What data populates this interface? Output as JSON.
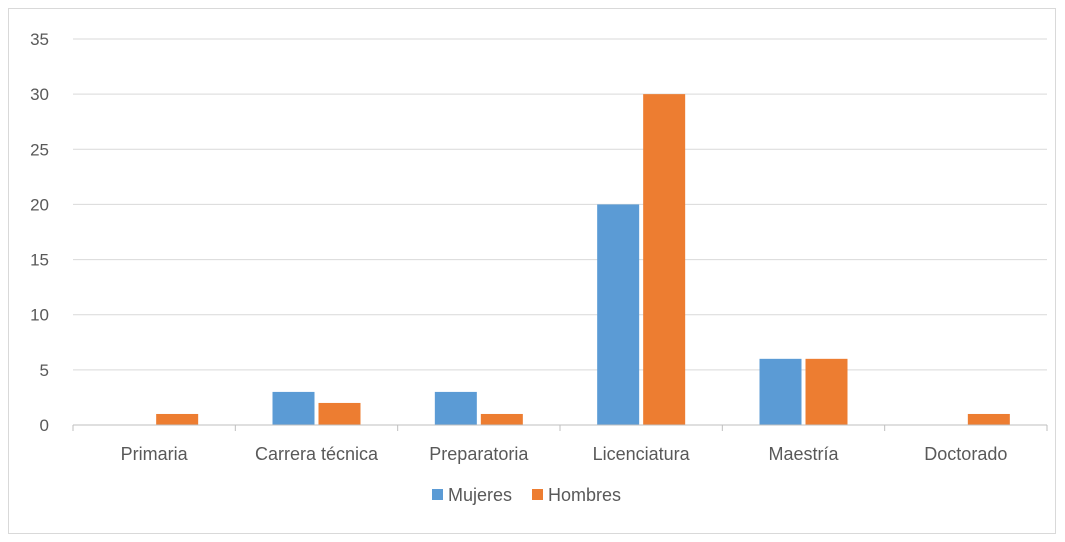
{
  "chart_data": {
    "type": "bar",
    "categories": [
      "Primaria",
      "Carrera técnica",
      "Preparatoria",
      "Licenciatura",
      "Maestría",
      "Doctorado"
    ],
    "series": [
      {
        "name": "Mujeres",
        "color": "#5b9bd5",
        "values": [
          0,
          3,
          3,
          20,
          6,
          0
        ]
      },
      {
        "name": "Hombres",
        "color": "#ed7d31",
        "values": [
          1,
          2,
          1,
          30,
          6,
          1
        ]
      }
    ],
    "y_ticks": [
      "0",
      "5",
      "10",
      "15",
      "20",
      "25",
      "30",
      "35"
    ],
    "ylim": [
      0,
      35
    ],
    "grid": true,
    "legend_position": "bottom"
  }
}
